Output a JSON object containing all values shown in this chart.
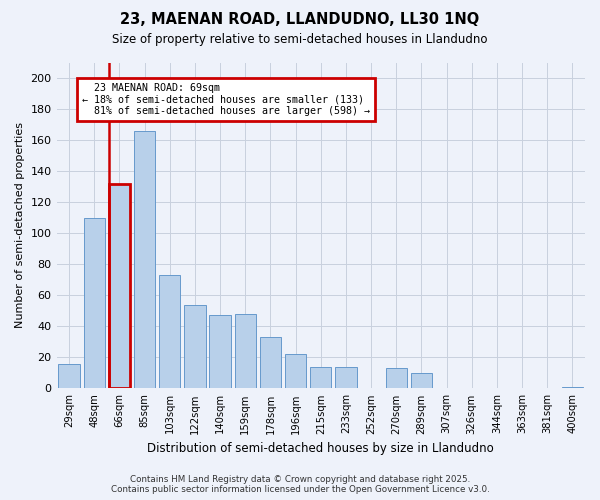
{
  "title1": "23, MAENAN ROAD, LLANDUDNO, LL30 1NQ",
  "title2": "Size of property relative to semi-detached houses in Llandudno",
  "xlabel": "Distribution of semi-detached houses by size in Llandudno",
  "ylabel": "Number of semi-detached properties",
  "categories": [
    "29sqm",
    "48sqm",
    "66sqm",
    "85sqm",
    "103sqm",
    "122sqm",
    "140sqm",
    "159sqm",
    "178sqm",
    "196sqm",
    "215sqm",
    "233sqm",
    "252sqm",
    "270sqm",
    "289sqm",
    "307sqm",
    "326sqm",
    "344sqm",
    "363sqm",
    "381sqm",
    "400sqm"
  ],
  "values": [
    16,
    110,
    132,
    166,
    73,
    54,
    47,
    48,
    33,
    22,
    14,
    14,
    0,
    13,
    10,
    0,
    0,
    0,
    0,
    0,
    1
  ],
  "bar_color": "#b8d0ea",
  "bar_edge_color": "#6699cc",
  "highlight_bar_index": 2,
  "highlight_color": "#cc0000",
  "property_label": "23 MAENAN ROAD: 69sqm",
  "smaller_pct": "18%",
  "smaller_count": 133,
  "larger_pct": "81%",
  "larger_count": 598,
  "annotation_box_color": "#cc0000",
  "background_color": "#eef2fa",
  "grid_color": "#c8d0de",
  "footer": "Contains HM Land Registry data © Crown copyright and database right 2025.\nContains public sector information licensed under the Open Government Licence v3.0.",
  "ylim": [
    0,
    210
  ],
  "yticks": [
    0,
    20,
    40,
    60,
    80,
    100,
    120,
    140,
    160,
    180,
    200
  ]
}
